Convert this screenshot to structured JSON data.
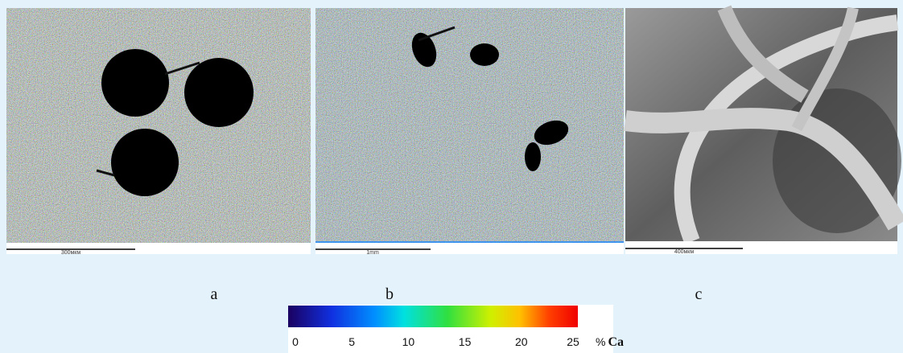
{
  "panels": [
    {
      "label": "a",
      "scale_label": "300мкм"
    },
    {
      "label": "b",
      "scale_label": "1mm"
    },
    {
      "label": "c",
      "scale_label": "400мкм"
    }
  ],
  "colorbar": {
    "ticks": [
      0,
      5,
      10,
      15,
      20,
      25
    ],
    "unit": "%",
    "element": "Ca"
  }
}
